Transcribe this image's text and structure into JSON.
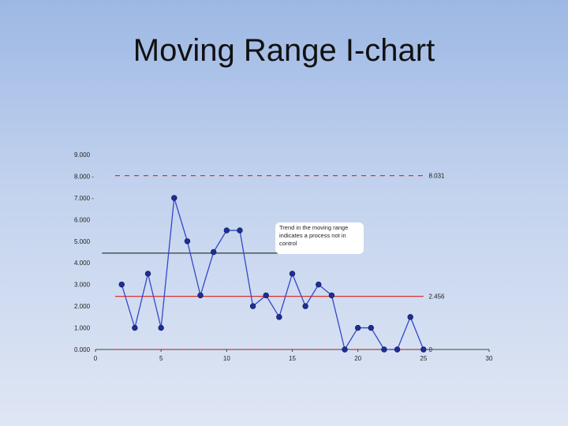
{
  "slide": {
    "title": "Moving Range I-chart"
  },
  "chart_data": {
    "type": "line",
    "title": "",
    "xlabel": "",
    "ylabel": "",
    "xlim": [
      0,
      30
    ],
    "ylim": [
      0,
      9
    ],
    "x_ticks": [
      "0",
      "5",
      "10",
      "15",
      "20",
      "25",
      "30"
    ],
    "y_ticks": [
      "0.000",
      "1.000",
      "2.000",
      "3.000",
      "4.000",
      "5.000",
      "6.000",
      "7.000 -",
      "8.000 -",
      "9.000"
    ],
    "grid": false,
    "series": [
      {
        "x": [
          2,
          3,
          4,
          5,
          6,
          7,
          8,
          9,
          10,
          11,
          12,
          13,
          14,
          15,
          16,
          17,
          18,
          19,
          20,
          21,
          22,
          23,
          24,
          25
        ],
        "values": [
          3,
          1,
          3.5,
          1,
          7,
          5,
          2.5,
          4.5,
          5.5,
          5.5,
          2,
          2.5,
          1.5,
          3.5,
          2,
          3,
          2.5,
          0,
          1,
          1,
          0,
          0,
          1.5,
          0
        ],
        "color": "#1f2f8f"
      }
    ],
    "reference_lines": [
      {
        "value": 8.031,
        "label": "8.031",
        "style": "dashed",
        "color": "#e03030"
      },
      {
        "value": 2.456,
        "label": "2.456",
        "style": "solid",
        "color": "#e03030"
      },
      {
        "value": 0,
        "label": "0",
        "style": "dashed",
        "color": "#e03030"
      }
    ],
    "trend_line": {
      "value": 4.45,
      "x_range": [
        0.5,
        17
      ],
      "color": "#111111"
    },
    "annotation": "Trend in the moving range indicates a process not in control"
  }
}
